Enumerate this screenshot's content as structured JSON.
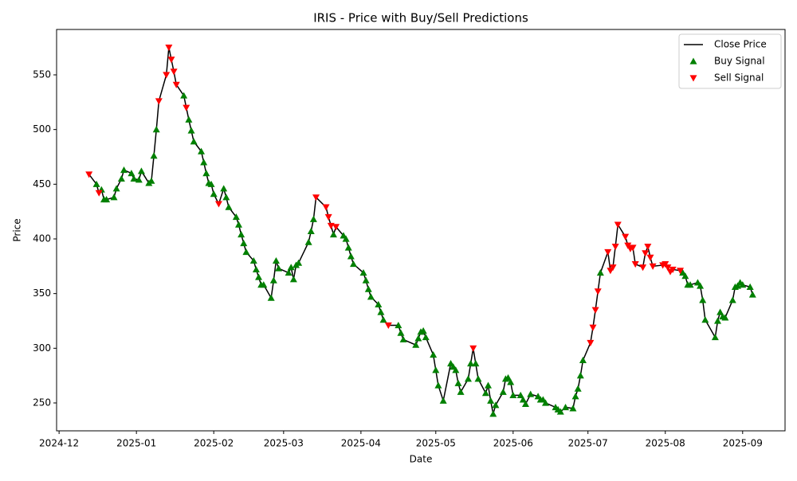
{
  "chart_data": {
    "type": "line",
    "title": "IRIS - Price with Buy/Sell Predictions",
    "xlabel": "Date",
    "ylabel": "Price",
    "xlim": [
      "2024-11-30",
      "2025-09-18"
    ],
    "xticks": [
      {
        "value": "2024-12-01",
        "label": "2024-12"
      },
      {
        "value": "2025-01-01",
        "label": "2025-01"
      },
      {
        "value": "2025-02-01",
        "label": "2025-02"
      },
      {
        "value": "2025-03-01",
        "label": "2025-03"
      },
      {
        "value": "2025-04-01",
        "label": "2025-04"
      },
      {
        "value": "2025-05-01",
        "label": "2025-05"
      },
      {
        "value": "2025-06-01",
        "label": "2025-06"
      },
      {
        "value": "2025-07-01",
        "label": "2025-07"
      },
      {
        "value": "2025-08-01",
        "label": "2025-08"
      },
      {
        "value": "2025-09-01",
        "label": "2025-09"
      }
    ],
    "ylim": [
      224.5,
      591.5
    ],
    "yticks": [
      250,
      300,
      350,
      400,
      450,
      500,
      550
    ],
    "grid": false,
    "legend": "upper right",
    "series": [
      {
        "name": "Close Price",
        "type": "line",
        "color": "#000000",
        "x": [
          "2024-12-13",
          "2024-12-16",
          "2024-12-17",
          "2024-12-18",
          "2024-12-19",
          "2024-12-20",
          "2024-12-23",
          "2024-12-24",
          "2024-12-26",
          "2024-12-27",
          "2024-12-30",
          "2024-12-31",
          "2025-01-02",
          "2025-01-03",
          "2025-01-06",
          "2025-01-07",
          "2025-01-08",
          "2025-01-09",
          "2025-01-10",
          "2025-01-13",
          "2025-01-14",
          "2025-01-15",
          "2025-01-16",
          "2025-01-17",
          "2025-01-20",
          "2025-01-21",
          "2025-01-22",
          "2025-01-23",
          "2025-01-24",
          "2025-01-27",
          "2025-01-28",
          "2025-01-29",
          "2025-01-30",
          "2025-01-31",
          "2025-02-01",
          "2025-02-03",
          "2025-02-05",
          "2025-02-06",
          "2025-02-07",
          "2025-02-10",
          "2025-02-11",
          "2025-02-12",
          "2025-02-13",
          "2025-02-14",
          "2025-02-17",
          "2025-02-18",
          "2025-02-19",
          "2025-02-20",
          "2025-02-21",
          "2025-02-24",
          "2025-02-25",
          "2025-02-26",
          "2025-02-27",
          "2025-03-03",
          "2025-03-04",
          "2025-03-05",
          "2025-03-06",
          "2025-03-07",
          "2025-03-11",
          "2025-03-12",
          "2025-03-13",
          "2025-03-14",
          "2025-03-18",
          "2025-03-19",
          "2025-03-20",
          "2025-03-21",
          "2025-03-22",
          "2025-03-25",
          "2025-03-26",
          "2025-03-27",
          "2025-03-28",
          "2025-03-29",
          "2025-04-02",
          "2025-04-03",
          "2025-04-04",
          "2025-04-05",
          "2025-04-08",
          "2025-04-09",
          "2025-04-10",
          "2025-04-12",
          "2025-04-16",
          "2025-04-17",
          "2025-04-18",
          "2025-04-23",
          "2025-04-24",
          "2025-04-25",
          "2025-04-26",
          "2025-04-27",
          "2025-04-30",
          "2025-05-01",
          "2025-05-02",
          "2025-05-04",
          "2025-05-07",
          "2025-05-08",
          "2025-05-09",
          "2025-05-10",
          "2025-05-11",
          "2025-05-14",
          "2025-05-15",
          "2025-05-16",
          "2025-05-17",
          "2025-05-18",
          "2025-05-21",
          "2025-05-22",
          "2025-05-23",
          "2025-05-24",
          "2025-05-25",
          "2025-05-28",
          "2025-05-29",
          "2025-05-30",
          "2025-05-31",
          "2025-06-01",
          "2025-06-04",
          "2025-06-05",
          "2025-06-06",
          "2025-06-08",
          "2025-06-11",
          "2025-06-12",
          "2025-06-13",
          "2025-06-14",
          "2025-06-18",
          "2025-06-19",
          "2025-06-20",
          "2025-06-22",
          "2025-06-25",
          "2025-06-26",
          "2025-06-27",
          "2025-06-28",
          "2025-06-29",
          "2025-07-02",
          "2025-07-03",
          "2025-07-04",
          "2025-07-05",
          "2025-07-06",
          "2025-07-09",
          "2025-07-10",
          "2025-07-11",
          "2025-07-12",
          "2025-07-13",
          "2025-07-16",
          "2025-07-17",
          "2025-07-18",
          "2025-07-19",
          "2025-07-20",
          "2025-07-23",
          "2025-07-24",
          "2025-07-25",
          "2025-07-26",
          "2025-07-27",
          "2025-07-31",
          "2025-08-01",
          "2025-08-02",
          "2025-08-03",
          "2025-08-04",
          "2025-08-07",
          "2025-08-08",
          "2025-08-09",
          "2025-08-10",
          "2025-08-11",
          "2025-08-14",
          "2025-08-15",
          "2025-08-16",
          "2025-08-17",
          "2025-08-21",
          "2025-08-22",
          "2025-08-23",
          "2025-08-24",
          "2025-08-25",
          "2025-08-28",
          "2025-08-29",
          "2025-08-30",
          "2025-08-31",
          "2025-09-01",
          "2025-09-04",
          "2025-09-05"
        ],
        "values": [
          459,
          450,
          442,
          445,
          436,
          436,
          438,
          446,
          455,
          463,
          460,
          455,
          454,
          462,
          451,
          453,
          476,
          500,
          526,
          550,
          575,
          564,
          553,
          541,
          531,
          520,
          509,
          499,
          489,
          480,
          470,
          460,
          451,
          450,
          441,
          432,
          446,
          438,
          429,
          420,
          413,
          404,
          396,
          388,
          380,
          372,
          365,
          358,
          358,
          346,
          362,
          380,
          373,
          369,
          374,
          363,
          376,
          378,
          397,
          407,
          418,
          438,
          429,
          420,
          412,
          404,
          411,
          403,
          400,
          392,
          384,
          377,
          369,
          362,
          354,
          347,
          340,
          333,
          326,
          321,
          321,
          314,
          308,
          303,
          309,
          315,
          316,
          310,
          294,
          280,
          266,
          252,
          286,
          283,
          280,
          268,
          260,
          272,
          286,
          300,
          286,
          272,
          259,
          266,
          252,
          240,
          248,
          260,
          272,
          273,
          269,
          257,
          257,
          253,
          249,
          258,
          256,
          253,
          253,
          250,
          246,
          244,
          242,
          246,
          245,
          256,
          263,
          275,
          289,
          305,
          319,
          335,
          352,
          369,
          388,
          371,
          374,
          393,
          413,
          402,
          394,
          391,
          392,
          377,
          374,
          387,
          393,
          383,
          375,
          376,
          377,
          374,
          370,
          372,
          371,
          369,
          366,
          358,
          358,
          360,
          357,
          344,
          326,
          310,
          325,
          333,
          329,
          328,
          344,
          356,
          357,
          360,
          358,
          356,
          349
        ]
      },
      {
        "name": "Buy Signal",
        "type": "scatter",
        "marker": "triangle-up",
        "color": "#008000",
        "x": [
          "2024-12-16",
          "2024-12-18",
          "2024-12-19",
          "2024-12-20",
          "2024-12-23",
          "2024-12-24",
          "2024-12-26",
          "2024-12-27",
          "2024-12-30",
          "2024-12-31",
          "2025-01-02",
          "2025-01-03",
          "2025-01-06",
          "2025-01-07",
          "2025-01-08",
          "2025-01-09",
          "2025-01-20",
          "2025-01-22",
          "2025-01-23",
          "2025-01-24",
          "2025-01-27",
          "2025-01-28",
          "2025-01-29",
          "2025-01-30",
          "2025-01-31",
          "2025-02-01",
          "2025-02-05",
          "2025-02-06",
          "2025-02-07",
          "2025-02-10",
          "2025-02-11",
          "2025-02-12",
          "2025-02-13",
          "2025-02-14",
          "2025-02-17",
          "2025-02-18",
          "2025-02-19",
          "2025-02-20",
          "2025-02-21",
          "2025-02-24",
          "2025-02-25",
          "2025-02-26",
          "2025-02-27",
          "2025-03-03",
          "2025-03-04",
          "2025-03-05",
          "2025-03-06",
          "2025-03-07",
          "2025-03-11",
          "2025-03-12",
          "2025-03-13",
          "2025-03-21",
          "2025-03-25",
          "2025-03-26",
          "2025-03-27",
          "2025-03-28",
          "2025-03-29",
          "2025-04-02",
          "2025-04-03",
          "2025-04-04",
          "2025-04-05",
          "2025-04-08",
          "2025-04-09",
          "2025-04-10",
          "2025-04-16",
          "2025-04-17",
          "2025-04-18",
          "2025-04-23",
          "2025-04-24",
          "2025-04-25",
          "2025-04-26",
          "2025-04-27",
          "2025-04-30",
          "2025-05-01",
          "2025-05-02",
          "2025-05-04",
          "2025-05-07",
          "2025-05-08",
          "2025-05-09",
          "2025-05-10",
          "2025-05-11",
          "2025-05-14",
          "2025-05-15",
          "2025-05-17",
          "2025-05-18",
          "2025-05-21",
          "2025-05-22",
          "2025-05-23",
          "2025-05-24",
          "2025-05-25",
          "2025-05-28",
          "2025-05-29",
          "2025-05-30",
          "2025-05-31",
          "2025-06-01",
          "2025-06-04",
          "2025-06-05",
          "2025-06-06",
          "2025-06-08",
          "2025-06-11",
          "2025-06-12",
          "2025-06-13",
          "2025-06-14",
          "2025-06-18",
          "2025-06-19",
          "2025-06-20",
          "2025-06-22",
          "2025-06-25",
          "2025-06-26",
          "2025-06-27",
          "2025-06-28",
          "2025-06-29",
          "2025-07-06",
          "2025-08-08",
          "2025-08-09",
          "2025-08-10",
          "2025-08-11",
          "2025-08-14",
          "2025-08-15",
          "2025-08-16",
          "2025-08-17",
          "2025-08-21",
          "2025-08-22",
          "2025-08-23",
          "2025-08-24",
          "2025-08-25",
          "2025-08-28",
          "2025-08-29",
          "2025-08-30",
          "2025-08-31",
          "2025-09-01",
          "2025-09-04",
          "2025-09-05"
        ],
        "values": [
          450,
          445,
          436,
          436,
          438,
          446,
          455,
          463,
          460,
          455,
          454,
          462,
          451,
          453,
          476,
          500,
          531,
          509,
          499,
          489,
          480,
          470,
          460,
          451,
          450,
          441,
          446,
          438,
          429,
          420,
          413,
          404,
          396,
          388,
          380,
          372,
          365,
          358,
          358,
          346,
          362,
          380,
          373,
          369,
          374,
          363,
          376,
          378,
          397,
          407,
          418,
          404,
          403,
          400,
          392,
          384,
          377,
          369,
          362,
          354,
          347,
          340,
          333,
          326,
          321,
          314,
          308,
          303,
          309,
          315,
          316,
          310,
          294,
          280,
          266,
          252,
          286,
          283,
          280,
          268,
          260,
          272,
          286,
          286,
          272,
          259,
          266,
          252,
          240,
          248,
          260,
          272,
          273,
          269,
          257,
          257,
          253,
          249,
          258,
          256,
          253,
          253,
          250,
          246,
          244,
          242,
          246,
          245,
          256,
          263,
          275,
          289,
          369,
          369,
          366,
          358,
          358,
          360,
          357,
          344,
          326,
          310,
          325,
          333,
          329,
          328,
          344,
          356,
          357,
          360,
          358,
          356,
          349
        ]
      },
      {
        "name": "Sell Signal",
        "type": "scatter",
        "marker": "triangle-down",
        "color": "#ff0000",
        "x": [
          "2024-12-13",
          "2024-12-17",
          "2025-01-10",
          "2025-01-13",
          "2025-01-14",
          "2025-01-15",
          "2025-01-16",
          "2025-01-17",
          "2025-01-21",
          "2025-02-03",
          "2025-03-14",
          "2025-03-18",
          "2025-03-19",
          "2025-03-20",
          "2025-03-22",
          "2025-04-12",
          "2025-05-16",
          "2025-07-02",
          "2025-07-03",
          "2025-07-04",
          "2025-07-05",
          "2025-07-09",
          "2025-07-10",
          "2025-07-11",
          "2025-07-12",
          "2025-07-13",
          "2025-07-16",
          "2025-07-17",
          "2025-07-18",
          "2025-07-19",
          "2025-07-20",
          "2025-07-23",
          "2025-07-24",
          "2025-07-25",
          "2025-07-26",
          "2025-07-27",
          "2025-07-31",
          "2025-08-01",
          "2025-08-02",
          "2025-08-03",
          "2025-08-04",
          "2025-08-07"
        ],
        "values": [
          459,
          442,
          526,
          550,
          575,
          564,
          553,
          541,
          520,
          432,
          438,
          429,
          420,
          412,
          411,
          321,
          300,
          305,
          319,
          335,
          352,
          388,
          371,
          374,
          393,
          413,
          402,
          394,
          391,
          392,
          377,
          374,
          387,
          393,
          383,
          375,
          376,
          377,
          374,
          370,
          372,
          371
        ]
      }
    ]
  }
}
